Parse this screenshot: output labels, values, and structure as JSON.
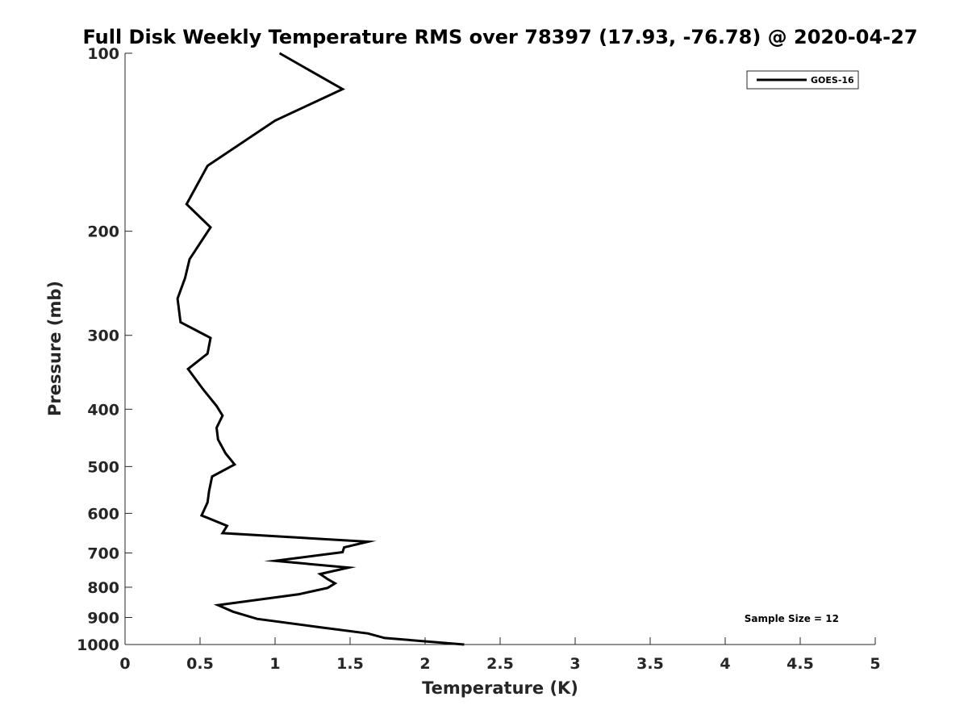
{
  "chart_data": {
    "type": "line",
    "title": "Full Disk Weekly Temperature RMS over 78397 (17.93, -76.78) @ 2020-04-27",
    "xlabel": "Temperature (K)",
    "ylabel": "Pressure (mb)",
    "xlim": [
      0,
      5
    ],
    "ylim": [
      100,
      1000
    ],
    "y_scale": "log",
    "y_reversed": true,
    "x_ticks": [
      0,
      0.5,
      1,
      1.5,
      2,
      2.5,
      3,
      3.5,
      4,
      4.5,
      5
    ],
    "x_tick_labels": [
      "0",
      "0.5",
      "1",
      "1.5",
      "2",
      "2.5",
      "3",
      "3.5",
      "4",
      "4.5",
      "5"
    ],
    "y_ticks": [
      100,
      200,
      300,
      400,
      500,
      600,
      700,
      800,
      900,
      1000
    ],
    "y_tick_labels": [
      "100",
      "200",
      "300",
      "400",
      "500",
      "600",
      "700",
      "800",
      "900",
      "1000"
    ],
    "grid": false,
    "legend_position": "top-right",
    "series": [
      {
        "name": "GOES-16",
        "color": "#000000",
        "x": [
          1.03,
          1.45,
          1.0,
          0.55,
          0.41,
          0.57,
          0.43,
          0.4,
          0.35,
          0.37,
          0.57,
          0.55,
          0.42,
          0.52,
          0.61,
          0.65,
          0.61,
          0.62,
          0.67,
          0.73,
          0.58,
          0.56,
          0.55,
          0.51,
          0.68,
          0.65,
          1.62,
          1.46,
          1.45,
          1.0,
          1.49,
          1.3,
          1.35,
          1.4,
          1.35,
          1.16,
          0.62,
          0.72,
          0.88,
          1.3,
          1.62,
          1.73,
          2.26
        ],
        "y": [
          100,
          115,
          130,
          155,
          180,
          197,
          223,
          240,
          260,
          285,
          303,
          322,
          342,
          370,
          395,
          410,
          430,
          450,
          475,
          496,
          520,
          550,
          575,
          605,
          630,
          648,
          670,
          685,
          698,
          722,
          741,
          760,
          775,
          788,
          802,
          822,
          858,
          880,
          905,
          935,
          958,
          975,
          1000
        ]
      }
    ],
    "annotations": [
      {
        "text": "Sample Size = 12"
      }
    ]
  }
}
